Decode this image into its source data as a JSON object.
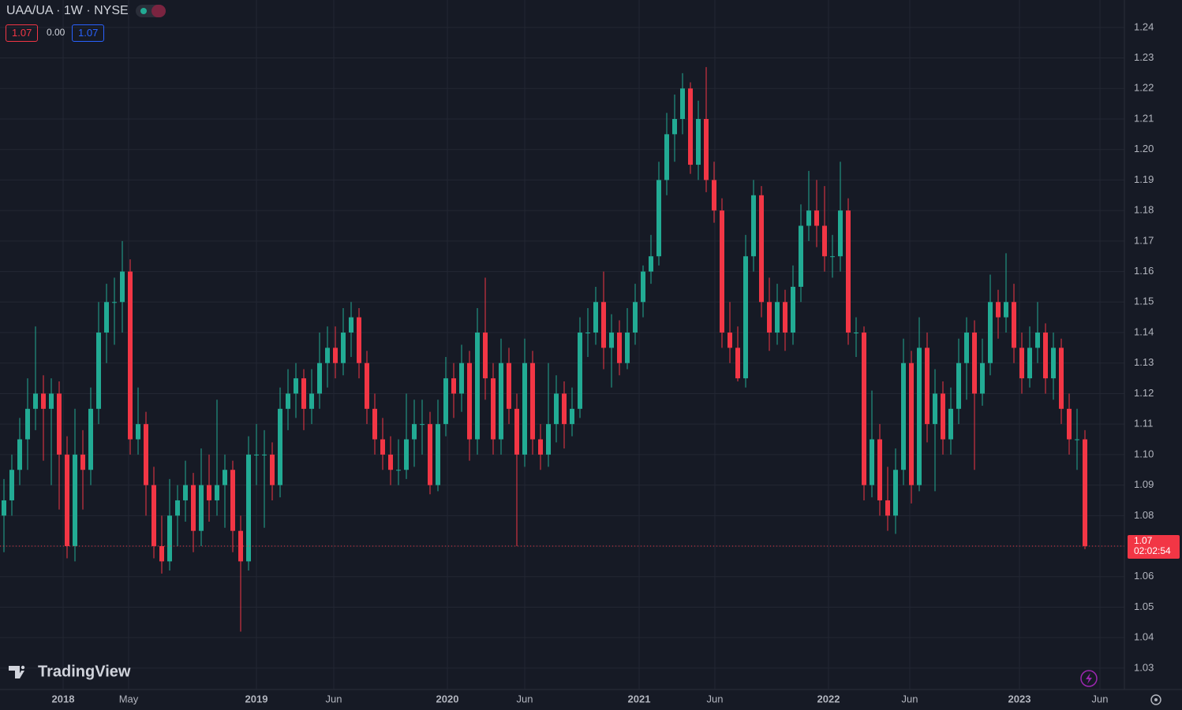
{
  "header": {
    "symbol": "UAA/UA · 1W · NYSE",
    "values": [
      "1.07",
      "0.00",
      "1.07"
    ]
  },
  "price_tag": {
    "last_price": 1.07,
    "countdown": "02:02:54"
  },
  "logo": "TradingView",
  "chart_data": {
    "type": "candlestick",
    "up_color": "#22ab94",
    "down_color": "#f23645",
    "grid": true,
    "xlim": [
      -0.5,
      142
    ],
    "ylim": [
      1.023,
      1.249
    ],
    "xticks": [
      {
        "value": 7.5,
        "label": "2018"
      },
      {
        "value": 15.8,
        "label": "May"
      },
      {
        "value": 32,
        "label": "2019"
      },
      {
        "value": 41.8,
        "label": "Jun"
      },
      {
        "value": 56.2,
        "label": "2020"
      },
      {
        "value": 66,
        "label": "Jun"
      },
      {
        "value": 80.5,
        "label": "2021"
      },
      {
        "value": 90.1,
        "label": "Jun"
      },
      {
        "value": 104.5,
        "label": "2022"
      },
      {
        "value": 114.8,
        "label": "Jun"
      },
      {
        "value": 128.7,
        "label": "2023"
      },
      {
        "value": 138.9,
        "label": "Jun"
      }
    ],
    "yticks": [
      1.03,
      1.04,
      1.05,
      1.06,
      1.07,
      1.08,
      1.09,
      {
        "value": 1.1,
        "label": "1.10"
      },
      1.11,
      1.12,
      1.13,
      1.14,
      1.15,
      1.16,
      1.17,
      1.18,
      1.19,
      {
        "value": 1.2,
        "label": "1.20"
      },
      1.21,
      1.22,
      1.23,
      1.24
    ],
    "ohlc": [
      [
        1.08,
        1.092,
        1.068,
        1.085
      ],
      [
        1.085,
        1.1,
        1.08,
        1.095
      ],
      [
        1.095,
        1.112,
        1.09,
        1.105
      ],
      [
        1.105,
        1.125,
        1.095,
        1.115
      ],
      [
        1.115,
        1.142,
        1.108,
        1.12
      ],
      [
        1.12,
        1.126,
        1.098,
        1.115
      ],
      [
        1.115,
        1.125,
        1.09,
        1.12
      ],
      [
        1.12,
        1.124,
        1.082,
        1.1
      ],
      [
        1.1,
        1.106,
        1.066,
        1.07
      ],
      [
        1.07,
        1.115,
        1.065,
        1.1
      ],
      [
        1.1,
        1.108,
        1.082,
        1.095
      ],
      [
        1.095,
        1.122,
        1.09,
        1.115
      ],
      [
        1.115,
        1.15,
        1.11,
        1.14
      ],
      [
        1.14,
        1.156,
        1.13,
        1.15
      ],
      [
        1.15,
        1.158,
        1.136,
        1.15
      ],
      [
        1.15,
        1.17,
        1.14,
        1.16
      ],
      [
        1.16,
        1.164,
        1.1,
        1.105
      ],
      [
        1.105,
        1.122,
        1.1,
        1.11
      ],
      [
        1.11,
        1.114,
        1.08,
        1.09
      ],
      [
        1.09,
        1.096,
        1.066,
        1.07
      ],
      [
        1.07,
        1.08,
        1.061,
        1.065
      ],
      [
        1.065,
        1.092,
        1.062,
        1.08
      ],
      [
        1.08,
        1.09,
        1.07,
        1.085
      ],
      [
        1.085,
        1.098,
        1.078,
        1.09
      ],
      [
        1.09,
        1.094,
        1.068,
        1.075
      ],
      [
        1.075,
        1.102,
        1.07,
        1.09
      ],
      [
        1.09,
        1.1,
        1.078,
        1.085
      ],
      [
        1.085,
        1.118,
        1.08,
        1.09
      ],
      [
        1.09,
        1.1,
        1.076,
        1.095
      ],
      [
        1.095,
        1.098,
        1.068,
        1.075
      ],
      [
        1.075,
        1.08,
        1.042,
        1.065
      ],
      [
        1.065,
        1.106,
        1.062,
        1.1
      ],
      [
        1.1,
        1.11,
        1.09,
        1.1
      ],
      [
        1.1,
        1.108,
        1.076,
        1.1
      ],
      [
        1.1,
        1.104,
        1.085,
        1.09
      ],
      [
        1.09,
        1.122,
        1.086,
        1.115
      ],
      [
        1.115,
        1.128,
        1.108,
        1.12
      ],
      [
        1.12,
        1.13,
        1.112,
        1.125
      ],
      [
        1.125,
        1.128,
        1.108,
        1.115
      ],
      [
        1.115,
        1.128,
        1.11,
        1.12
      ],
      [
        1.12,
        1.14,
        1.115,
        1.13
      ],
      [
        1.13,
        1.142,
        1.122,
        1.135
      ],
      [
        1.135,
        1.142,
        1.125,
        1.13
      ],
      [
        1.13,
        1.148,
        1.126,
        1.14
      ],
      [
        1.14,
        1.15,
        1.132,
        1.145
      ],
      [
        1.145,
        1.148,
        1.125,
        1.13
      ],
      [
        1.13,
        1.134,
        1.11,
        1.115
      ],
      [
        1.115,
        1.12,
        1.1,
        1.105
      ],
      [
        1.105,
        1.112,
        1.095,
        1.1
      ],
      [
        1.1,
        1.106,
        1.09,
        1.095
      ],
      [
        1.095,
        1.105,
        1.09,
        1.095
      ],
      [
        1.095,
        1.12,
        1.092,
        1.105
      ],
      [
        1.105,
        1.118,
        1.096,
        1.11
      ],
      [
        1.11,
        1.118,
        1.1,
        1.11
      ],
      [
        1.11,
        1.114,
        1.087,
        1.09
      ],
      [
        1.09,
        1.118,
        1.088,
        1.11
      ],
      [
        1.11,
        1.132,
        1.106,
        1.125
      ],
      [
        1.125,
        1.13,
        1.112,
        1.12
      ],
      [
        1.12,
        1.136,
        1.114,
        1.13
      ],
      [
        1.13,
        1.134,
        1.098,
        1.105
      ],
      [
        1.105,
        1.148,
        1.1,
        1.14
      ],
      [
        1.14,
        1.158,
        1.118,
        1.125
      ],
      [
        1.125,
        1.13,
        1.1,
        1.105
      ],
      [
        1.105,
        1.138,
        1.1,
        1.13
      ],
      [
        1.13,
        1.135,
        1.11,
        1.115
      ],
      [
        1.115,
        1.12,
        1.07,
        1.1
      ],
      [
        1.1,
        1.138,
        1.096,
        1.13
      ],
      [
        1.13,
        1.134,
        1.1,
        1.105
      ],
      [
        1.105,
        1.11,
        1.095,
        1.1
      ],
      [
        1.1,
        1.13,
        1.096,
        1.11
      ],
      [
        1.11,
        1.126,
        1.104,
        1.12
      ],
      [
        1.12,
        1.124,
        1.102,
        1.11
      ],
      [
        1.11,
        1.122,
        1.106,
        1.115
      ],
      [
        1.115,
        1.145,
        1.112,
        1.14
      ],
      [
        1.14,
        1.148,
        1.132,
        1.14
      ],
      [
        1.14,
        1.155,
        1.136,
        1.15
      ],
      [
        1.15,
        1.16,
        1.128,
        1.135
      ],
      [
        1.135,
        1.146,
        1.122,
        1.14
      ],
      [
        1.14,
        1.144,
        1.126,
        1.13
      ],
      [
        1.13,
        1.148,
        1.128,
        1.14
      ],
      [
        1.14,
        1.156,
        1.136,
        1.15
      ],
      [
        1.15,
        1.162,
        1.145,
        1.16
      ],
      [
        1.16,
        1.172,
        1.156,
        1.165
      ],
      [
        1.165,
        1.196,
        1.162,
        1.19
      ],
      [
        1.19,
        1.212,
        1.185,
        1.205
      ],
      [
        1.205,
        1.218,
        1.196,
        1.21
      ],
      [
        1.21,
        1.225,
        1.205,
        1.22
      ],
      [
        1.22,
        1.222,
        1.192,
        1.195
      ],
      [
        1.195,
        1.216,
        1.19,
        1.21
      ],
      [
        1.21,
        1.227,
        1.186,
        1.19
      ],
      [
        1.19,
        1.196,
        1.176,
        1.18
      ],
      [
        1.18,
        1.184,
        1.135,
        1.14
      ],
      [
        1.14,
        1.15,
        1.13,
        1.135
      ],
      [
        1.135,
        1.142,
        1.124,
        1.125
      ],
      [
        1.125,
        1.172,
        1.122,
        1.165
      ],
      [
        1.165,
        1.19,
        1.16,
        1.185
      ],
      [
        1.185,
        1.188,
        1.145,
        1.15
      ],
      [
        1.15,
        1.158,
        1.134,
        1.14
      ],
      [
        1.14,
        1.156,
        1.136,
        1.15
      ],
      [
        1.15,
        1.154,
        1.134,
        1.14
      ],
      [
        1.14,
        1.162,
        1.136,
        1.155
      ],
      [
        1.155,
        1.182,
        1.15,
        1.175
      ],
      [
        1.175,
        1.193,
        1.17,
        1.18
      ],
      [
        1.18,
        1.19,
        1.168,
        1.175
      ],
      [
        1.175,
        1.188,
        1.16,
        1.165
      ],
      [
        1.165,
        1.172,
        1.158,
        1.165
      ],
      [
        1.165,
        1.196,
        1.16,
        1.18
      ],
      [
        1.18,
        1.184,
        1.136,
        1.14
      ],
      [
        1.14,
        1.145,
        1.132,
        1.14
      ],
      [
        1.14,
        1.142,
        1.085,
        1.09
      ],
      [
        1.09,
        1.121,
        1.086,
        1.105
      ],
      [
        1.105,
        1.11,
        1.08,
        1.085
      ],
      [
        1.085,
        1.096,
        1.075,
        1.08
      ],
      [
        1.08,
        1.102,
        1.074,
        1.095
      ],
      [
        1.095,
        1.138,
        1.09,
        1.13
      ],
      [
        1.13,
        1.134,
        1.084,
        1.09
      ],
      [
        1.09,
        1.145,
        1.088,
        1.135
      ],
      [
        1.135,
        1.14,
        1.104,
        1.11
      ],
      [
        1.11,
        1.128,
        1.088,
        1.12
      ],
      [
        1.12,
        1.124,
        1.1,
        1.105
      ],
      [
        1.105,
        1.122,
        1.1,
        1.115
      ],
      [
        1.115,
        1.138,
        1.11,
        1.13
      ],
      [
        1.13,
        1.145,
        1.118,
        1.14
      ],
      [
        1.14,
        1.144,
        1.095,
        1.12
      ],
      [
        1.12,
        1.138,
        1.116,
        1.13
      ],
      [
        1.13,
        1.159,
        1.126,
        1.15
      ],
      [
        1.15,
        1.154,
        1.138,
        1.145
      ],
      [
        1.145,
        1.166,
        1.14,
        1.15
      ],
      [
        1.15,
        1.156,
        1.13,
        1.135
      ],
      [
        1.135,
        1.14,
        1.12,
        1.125
      ],
      [
        1.125,
        1.142,
        1.122,
        1.135
      ],
      [
        1.135,
        1.15,
        1.13,
        1.14
      ],
      [
        1.14,
        1.143,
        1.12,
        1.125
      ],
      [
        1.125,
        1.14,
        1.118,
        1.135
      ],
      [
        1.135,
        1.138,
        1.11,
        1.115
      ],
      [
        1.115,
        1.12,
        1.1,
        1.105
      ],
      [
        1.105,
        1.115,
        1.095,
        1.105
      ],
      [
        1.105,
        1.108,
        1.069,
        1.07
      ]
    ]
  }
}
